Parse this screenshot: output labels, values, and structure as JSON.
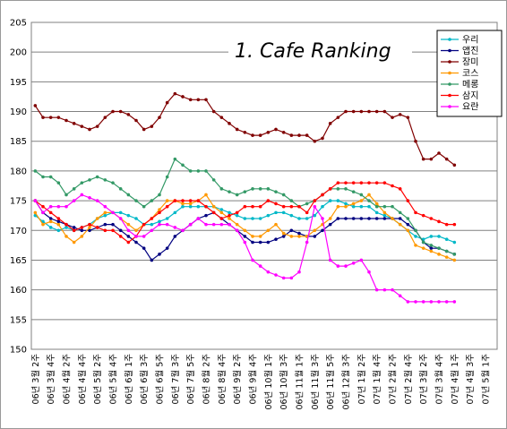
{
  "chart_data": {
    "type": "line",
    "title": "1. Cafe Ranking",
    "categories": [
      "06년 3월 2주",
      null,
      "06년 3월 4주",
      null,
      "06년 4월 2주",
      null,
      "06년 4월 4주",
      null,
      "06년 5월 2주",
      null,
      "06년 5월 4주",
      null,
      "06년 6월 1주",
      null,
      "06년 6월 3주",
      null,
      "06년 6월 5주",
      null,
      "06년 7월 3주",
      null,
      "06년 7월 5주",
      null,
      "06년 8월 2주",
      null,
      "06년 8월 4주",
      null,
      "06년 9월 2주",
      null,
      "06년 9월 4주",
      null,
      "06년 10월 1주",
      null,
      "06년 10월 3주",
      null,
      "06년 11월 1주",
      null,
      "06년 11월 3주",
      null,
      "06년 11월 5주",
      null,
      "06년 12월 3주",
      null,
      "07년 1월 2주",
      null,
      "07년 1월 4주",
      null,
      "07년 2월 2주",
      null,
      "07년 2월 4주",
      null,
      "07년 3월 2주",
      null,
      "07년 3월 4주",
      null,
      "07년 4월 1주",
      null,
      "07년 4월 3주",
      null,
      "07년 5월 1주",
      null
    ],
    "series": [
      {
        "name": "우리",
        "color": "#00b8c8",
        "values": [
          172.5,
          171.5,
          170.5,
          170,
          170.5,
          170,
          170.5,
          171,
          172,
          172.5,
          173,
          173,
          172.5,
          172,
          171,
          171,
          171.5,
          172,
          173,
          174,
          174,
          174,
          174,
          174,
          173.5,
          173,
          172.5,
          172,
          172,
          172,
          172.5,
          173,
          173,
          172.5,
          172,
          172,
          172.5,
          174,
          175,
          175,
          174.5,
          174,
          174,
          174,
          173,
          172.5,
          172,
          171,
          170,
          169,
          168.5,
          169,
          169,
          168.5,
          168,
          null,
          null,
          null,
          null,
          null
        ]
      },
      {
        "name": "앱진",
        "color": "#000080",
        "values": [
          175,
          173,
          172,
          171.5,
          171,
          170.5,
          170,
          170,
          170.5,
          171,
          171,
          170,
          169,
          168,
          167,
          165,
          166,
          167,
          169,
          170,
          171,
          172,
          172.5,
          173,
          172,
          171,
          170,
          169,
          168,
          168,
          168,
          168.5,
          169,
          170,
          169.5,
          169,
          169,
          170,
          171,
          172,
          172,
          172,
          172,
          172,
          172,
          172,
          172,
          172,
          171,
          170,
          168,
          167,
          167,
          166.5,
          166,
          null,
          null,
          null,
          null,
          null
        ]
      },
      {
        "name": "장미",
        "color": "#800000",
        "values": [
          191,
          189,
          189,
          189,
          188.5,
          188,
          187.5,
          187,
          187.5,
          189,
          190,
          190,
          189.5,
          188.5,
          187,
          187.5,
          189,
          191.5,
          193,
          192.5,
          192,
          192,
          192,
          190,
          189,
          188,
          187,
          186.5,
          186,
          186,
          186.5,
          187,
          186.5,
          186,
          186,
          186,
          185,
          185.5,
          188,
          189,
          190,
          190,
          190,
          190,
          190,
          190,
          189,
          189.5,
          189,
          185,
          182,
          182,
          183,
          182,
          181,
          null,
          null,
          null,
          null,
          null
        ]
      },
      {
        "name": "코스",
        "color": "#ff9900",
        "values": [
          173,
          171,
          171.5,
          171,
          169,
          168,
          169,
          170.5,
          172,
          173,
          173,
          172,
          171,
          170,
          171,
          172,
          173.5,
          175,
          175,
          174.5,
          174.5,
          175,
          176,
          174,
          173,
          172,
          171,
          170,
          169,
          169,
          170,
          171,
          169.5,
          169,
          169,
          169,
          170,
          171,
          172,
          174,
          174,
          174.5,
          175,
          176,
          174.5,
          173,
          172,
          171,
          170,
          167.5,
          167,
          166.5,
          166,
          165.5,
          165,
          null,
          null,
          null,
          null,
          null
        ]
      },
      {
        "name": "메롱",
        "color": "#339966",
        "values": [
          180,
          179,
          179,
          178,
          176,
          177,
          178,
          178.5,
          179,
          178.5,
          178,
          177,
          176,
          175,
          174,
          175,
          176,
          179,
          182,
          181,
          180,
          180,
          180,
          178.5,
          177,
          176.5,
          176,
          176.5,
          177,
          177,
          177,
          176.5,
          176,
          175,
          174,
          174.5,
          175,
          176,
          177,
          177,
          177,
          176.5,
          176,
          175,
          174,
          174,
          174,
          173,
          172,
          170,
          168,
          167.5,
          167,
          166.5,
          166,
          null,
          null,
          null,
          null,
          null
        ]
      },
      {
        "name": "삼지",
        "color": "#ff0000",
        "values": [
          175,
          174,
          173,
          172,
          171,
          170,
          170.5,
          171,
          170.5,
          170,
          170,
          169,
          168,
          169,
          171,
          172,
          173,
          174,
          175,
          175,
          175,
          175,
          174,
          173,
          172,
          172.5,
          173,
          174,
          174,
          174,
          175,
          174.5,
          174,
          174,
          174,
          173,
          175,
          176,
          177,
          178,
          178,
          178,
          178,
          178,
          178,
          178,
          177.5,
          177,
          175,
          173,
          172.5,
          172,
          171.5,
          171,
          171,
          null,
          null,
          null,
          null,
          null
        ]
      },
      {
        "name": "요란",
        "color": "#ff00ff",
        "values": [
          175,
          173,
          174,
          174,
          174,
          175,
          176,
          175.5,
          175,
          174,
          173,
          172,
          170,
          169,
          169,
          170,
          171,
          171,
          170.5,
          170,
          171,
          172,
          171,
          171,
          171,
          171,
          170,
          168,
          165,
          164,
          163,
          162.5,
          162,
          162,
          163,
          168,
          174,
          172,
          165,
          164,
          164,
          164.5,
          165,
          163,
          160,
          160,
          160,
          159,
          158,
          158,
          158,
          158,
          158,
          158,
          158,
          null,
          null,
          null,
          null,
          null
        ]
      }
    ],
    "ylim": [
      150,
      205
    ],
    "yticks": [
      150,
      155,
      160,
      165,
      170,
      175,
      180,
      185,
      190,
      195,
      200,
      205
    ],
    "grid": true
  }
}
